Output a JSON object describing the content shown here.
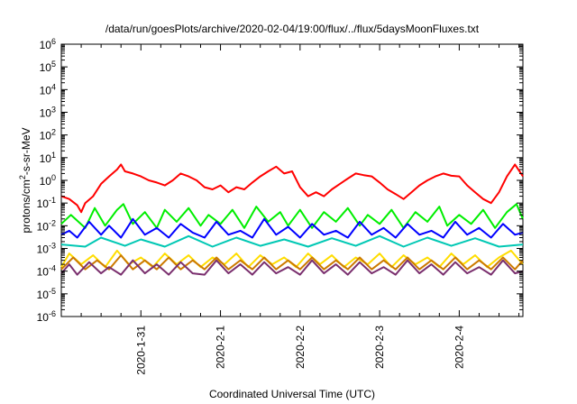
{
  "chart_data": {
    "type": "line",
    "title": "/data/run/goesPlots/archive/2020-02-04/19:00/flux/../flux/5daysMoonFluxes.txt",
    "xlabel": "Coordinated Universal Time (UTC)",
    "ylabel": {
      "base": "protons/cm",
      "sup": "2",
      "rest": "-s-sr-MeV"
    },
    "y_scale": "log",
    "ylim_exponent": [
      -6,
      6
    ],
    "y_ticks": [
      {
        "base": "10",
        "exp": "-6",
        "value": -6
      },
      {
        "base": "10",
        "exp": "-5",
        "value": -5
      },
      {
        "base": "10",
        "exp": "-4",
        "value": -4
      },
      {
        "base": "10",
        "exp": "-3",
        "value": -3
      },
      {
        "base": "10",
        "exp": "-2",
        "value": -2
      },
      {
        "base": "10",
        "exp": "-1",
        "value": -1
      },
      {
        "base": "10",
        "exp": "0",
        "value": 0
      },
      {
        "base": "10",
        "exp": "1",
        "value": 1
      },
      {
        "base": "10",
        "exp": "2",
        "value": 2
      },
      {
        "base": "10",
        "exp": "3",
        "value": 3
      },
      {
        "base": "10",
        "exp": "4",
        "value": 4
      },
      {
        "base": "10",
        "exp": "5",
        "value": 5
      },
      {
        "base": "10",
        "exp": "6",
        "value": 6
      }
    ],
    "xlim_days": [
      0,
      5.8
    ],
    "x_ticks": [
      {
        "label": "2020-1-31",
        "day": 1.0
      },
      {
        "label": "2020-2-1",
        "day": 2.0
      },
      {
        "label": "2020-2-2",
        "day": 3.0
      },
      {
        "label": "2020-2-3",
        "day": 4.0
      },
      {
        "label": "2020-2-4",
        "day": 5.0
      }
    ],
    "grid": false,
    "legend": "none",
    "series": [
      {
        "color": "#ff0000",
        "x": [
          0.0,
          0.1,
          0.2,
          0.25,
          0.3,
          0.4,
          0.5,
          0.6,
          0.7,
          0.75,
          0.8,
          0.9,
          1.0,
          1.1,
          1.2,
          1.3,
          1.4,
          1.5,
          1.6,
          1.7,
          1.8,
          1.9,
          2.0,
          2.1,
          2.2,
          2.3,
          2.4,
          2.5,
          2.6,
          2.7,
          2.8,
          2.9,
          3.0,
          3.1,
          3.2,
          3.3,
          3.4,
          3.5,
          3.6,
          3.7,
          3.8,
          3.9,
          4.0,
          4.1,
          4.2,
          4.3,
          4.4,
          4.5,
          4.6,
          4.7,
          4.8,
          4.9,
          5.0,
          5.1,
          5.2,
          5.3,
          5.4,
          5.5,
          5.6,
          5.7,
          5.8
        ],
        "y": [
          0.2,
          0.15,
          0.08,
          0.04,
          0.1,
          0.2,
          0.7,
          1.5,
          3.0,
          5.0,
          2.5,
          2.0,
          1.5,
          1.0,
          0.8,
          0.6,
          1.0,
          2.0,
          1.5,
          1.0,
          0.5,
          0.4,
          0.6,
          0.3,
          0.5,
          0.4,
          0.8,
          1.5,
          2.5,
          4.0,
          2.0,
          2.5,
          0.5,
          0.2,
          0.3,
          0.2,
          0.4,
          0.7,
          1.2,
          2.0,
          1.7,
          1.5,
          0.8,
          0.4,
          0.25,
          0.15,
          0.3,
          0.6,
          1.0,
          1.5,
          2.0,
          1.6,
          1.5,
          0.6,
          0.3,
          0.15,
          0.1,
          0.3,
          1.5,
          5.0,
          1.5
        ]
      },
      {
        "color": "#00ee00",
        "x": [
          0.0,
          0.12,
          0.3,
          0.42,
          0.55,
          0.7,
          0.78,
          0.9,
          1.05,
          1.2,
          1.3,
          1.45,
          1.6,
          1.75,
          1.85,
          2.0,
          2.15,
          2.3,
          2.45,
          2.6,
          2.75,
          2.85,
          3.0,
          3.15,
          3.3,
          3.45,
          3.6,
          3.75,
          3.85,
          4.0,
          4.15,
          4.3,
          4.45,
          4.6,
          4.75,
          4.85,
          5.0,
          5.15,
          5.3,
          5.45,
          5.6,
          5.72,
          5.8
        ],
        "y": [
          0.012,
          0.03,
          0.008,
          0.06,
          0.01,
          0.05,
          0.09,
          0.012,
          0.04,
          0.008,
          0.05,
          0.015,
          0.06,
          0.01,
          0.03,
          0.012,
          0.05,
          0.008,
          0.07,
          0.015,
          0.04,
          0.01,
          0.05,
          0.008,
          0.04,
          0.015,
          0.06,
          0.01,
          0.03,
          0.012,
          0.05,
          0.008,
          0.04,
          0.015,
          0.07,
          0.01,
          0.03,
          0.012,
          0.05,
          0.008,
          0.04,
          0.09,
          0.02
        ]
      },
      {
        "color": "#00c8b4",
        "x": [
          0.0,
          0.3,
          0.5,
          0.8,
          1.0,
          1.3,
          1.6,
          1.9,
          2.2,
          2.5,
          2.8,
          3.1,
          3.4,
          3.7,
          4.0,
          4.3,
          4.6,
          4.9,
          5.2,
          5.5,
          5.8
        ],
        "y": [
          0.0015,
          0.0012,
          0.003,
          0.0013,
          0.0025,
          0.0012,
          0.0035,
          0.0012,
          0.003,
          0.0013,
          0.0025,
          0.0012,
          0.0028,
          0.0013,
          0.0035,
          0.0012,
          0.003,
          0.0013,
          0.0028,
          0.0012,
          0.0015
        ]
      },
      {
        "color": "#0000ff",
        "x": [
          0.0,
          0.1,
          0.2,
          0.35,
          0.5,
          0.6,
          0.75,
          0.9,
          1.05,
          1.2,
          1.35,
          1.5,
          1.65,
          1.8,
          1.95,
          2.1,
          2.25,
          2.4,
          2.55,
          2.7,
          2.85,
          3.0,
          3.15,
          3.3,
          3.45,
          3.6,
          3.75,
          3.9,
          4.05,
          4.2,
          4.35,
          4.5,
          4.65,
          4.8,
          4.95,
          5.1,
          5.25,
          5.4,
          5.55,
          5.7,
          5.8
        ],
        "y": [
          0.004,
          0.006,
          0.003,
          0.015,
          0.004,
          0.01,
          0.003,
          0.02,
          0.004,
          0.008,
          0.003,
          0.012,
          0.005,
          0.003,
          0.015,
          0.004,
          0.006,
          0.003,
          0.02,
          0.004,
          0.009,
          0.003,
          0.012,
          0.004,
          0.006,
          0.003,
          0.015,
          0.004,
          0.008,
          0.003,
          0.012,
          0.004,
          0.006,
          0.003,
          0.015,
          0.004,
          0.008,
          0.003,
          0.012,
          0.004,
          0.005
        ]
      },
      {
        "color": "#ffdd00",
        "x": [
          0.0,
          0.1,
          0.25,
          0.4,
          0.55,
          0.7,
          0.85,
          1.0,
          1.15,
          1.3,
          1.45,
          1.6,
          1.75,
          1.9,
          2.05,
          2.2,
          2.35,
          2.5,
          2.65,
          2.8,
          2.95,
          3.1,
          3.25,
          3.4,
          3.55,
          3.7,
          3.85,
          4.0,
          4.15,
          4.3,
          4.45,
          4.6,
          4.75,
          4.9,
          5.05,
          5.2,
          5.35,
          5.5,
          5.65,
          5.8
        ],
        "y": [
          0.00015,
          0.0006,
          0.0002,
          0.0005,
          0.00015,
          0.0008,
          0.0002,
          0.0004,
          0.00015,
          0.0006,
          0.0002,
          0.0005,
          0.00015,
          0.0004,
          0.0002,
          0.0006,
          0.00015,
          0.0005,
          0.0002,
          0.0004,
          0.00015,
          0.0006,
          0.0002,
          0.0005,
          0.00015,
          0.0004,
          0.0002,
          0.0006,
          0.00015,
          0.0005,
          0.0002,
          0.0004,
          0.00015,
          0.0006,
          0.0002,
          0.0005,
          0.00015,
          0.0004,
          0.0008,
          0.0002
        ]
      },
      {
        "color": "#cc7a00",
        "x": [
          0.0,
          0.15,
          0.3,
          0.45,
          0.6,
          0.75,
          0.9,
          1.05,
          1.2,
          1.35,
          1.5,
          1.65,
          1.8,
          1.95,
          2.1,
          2.25,
          2.4,
          2.55,
          2.7,
          2.85,
          3.0,
          3.15,
          3.3,
          3.45,
          3.6,
          3.75,
          3.9,
          4.05,
          4.2,
          4.35,
          4.5,
          4.65,
          4.8,
          4.95,
          5.1,
          5.25,
          5.4,
          5.55,
          5.7,
          5.8
        ],
        "y": [
          0.00012,
          0.0004,
          0.00012,
          0.0003,
          0.00012,
          0.0005,
          0.00012,
          0.0003,
          0.00012,
          0.0004,
          0.00012,
          0.0003,
          0.00012,
          0.0004,
          0.00012,
          0.0003,
          0.00012,
          0.0004,
          0.00012,
          0.0003,
          0.00012,
          0.0004,
          0.00012,
          0.0003,
          0.00012,
          0.0004,
          0.00012,
          0.0003,
          0.00012,
          0.0004,
          0.00012,
          0.0003,
          0.00012,
          0.0004,
          0.00012,
          0.0003,
          0.00012,
          0.0004,
          0.00012,
          0.0003
        ]
      },
      {
        "color": "#7a2f6e",
        "x": [
          0.0,
          0.1,
          0.2,
          0.35,
          0.5,
          0.6,
          0.75,
          0.9,
          1.05,
          1.2,
          1.35,
          1.5,
          1.65,
          1.8,
          1.95,
          2.1,
          2.25,
          2.4,
          2.55,
          2.7,
          2.85,
          3.0,
          3.15,
          3.3,
          3.45,
          3.6,
          3.75,
          3.9,
          4.05,
          4.2,
          4.35,
          4.5,
          4.65,
          4.8,
          4.95,
          5.1,
          5.25,
          5.4,
          5.55,
          5.7,
          5.8
        ],
        "y": [
          8e-05,
          0.0002,
          7e-05,
          0.00025,
          8e-05,
          0.00015,
          7e-05,
          0.0003,
          8e-05,
          0.0002,
          7e-05,
          0.00025,
          8e-05,
          7e-05,
          0.0003,
          8e-05,
          0.0002,
          7e-05,
          0.00025,
          8e-05,
          0.00015,
          7e-05,
          0.0003,
          8e-05,
          0.0002,
          7e-05,
          0.00025,
          8e-05,
          0.00015,
          7e-05,
          0.0003,
          8e-05,
          0.0002,
          7e-05,
          0.00025,
          8e-05,
          0.00015,
          7e-05,
          0.0003,
          8e-05,
          0.0001
        ]
      }
    ]
  }
}
